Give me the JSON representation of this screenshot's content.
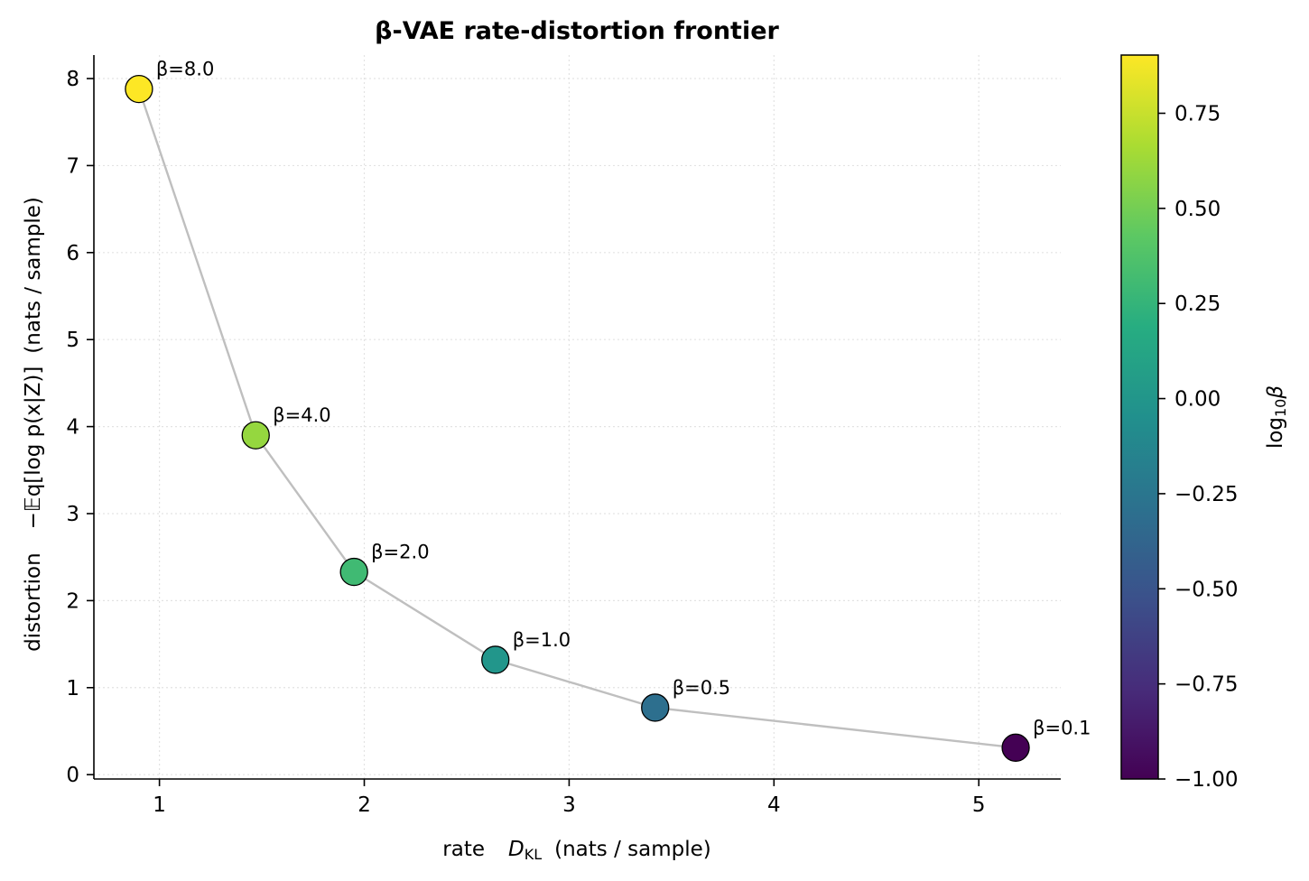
{
  "chart_data": {
    "type": "scatter",
    "title": "β-VAE rate-distortion frontier",
    "xlabel": {
      "prefix": "rate",
      "sym": "D",
      "sub": "KL",
      "unit": "(nats / sample)"
    },
    "ylabel": {
      "prefix": "distortion",
      "expr": "−𝔼q[log p(x|Z)]",
      "unit": "(nats / sample)"
    },
    "xlim": [
      0.68,
      5.4
    ],
    "ylim": [
      -0.05,
      8.27
    ],
    "xticks": [
      1,
      2,
      3,
      4,
      5
    ],
    "xtick_labels": [
      "1",
      "2",
      "3",
      "4",
      "5"
    ],
    "yticks": [
      0,
      1,
      2,
      3,
      4,
      5,
      6,
      7,
      8
    ],
    "ytick_labels": [
      "0",
      "1",
      "2",
      "3",
      "4",
      "5",
      "6",
      "7",
      "8"
    ],
    "grid": true,
    "colormap": "viridis",
    "line_color": "#bfbfbf",
    "points": [
      {
        "x": 0.9,
        "y": 7.88,
        "beta": 8.0,
        "label": "β=8.0"
      },
      {
        "x": 1.47,
        "y": 3.9,
        "beta": 4.0,
        "label": "β=4.0"
      },
      {
        "x": 1.95,
        "y": 2.33,
        "beta": 2.0,
        "label": "β=2.0"
      },
      {
        "x": 2.64,
        "y": 1.32,
        "beta": 1.0,
        "label": "β=1.0"
      },
      {
        "x": 3.42,
        "y": 0.77,
        "beta": 0.5,
        "label": "β=0.5"
      },
      {
        "x": 5.18,
        "y": 0.31,
        "beta": 0.1,
        "label": "β=0.1"
      }
    ],
    "colorbar": {
      "label_prefix": "log",
      "label_sub": "10",
      "label_sym": "β",
      "range": [
        -1.0,
        0.903
      ],
      "ticks": [
        -1.0,
        -0.75,
        -0.5,
        -0.25,
        0.0,
        0.25,
        0.5,
        0.75
      ],
      "tick_labels": [
        "−1.00",
        "−0.75",
        "−0.50",
        "−0.25",
        "0.00",
        "0.25",
        "0.50",
        "0.75"
      ]
    }
  }
}
